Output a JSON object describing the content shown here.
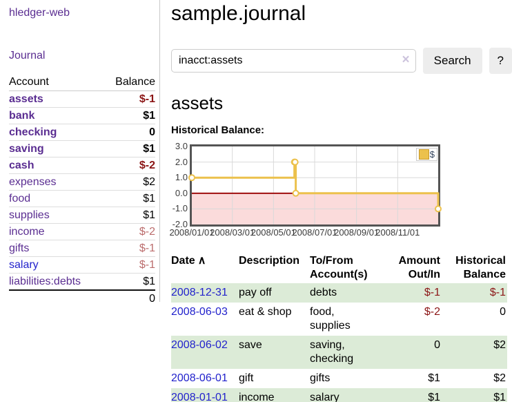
{
  "colors": {
    "link_purple": "#5a2d91",
    "link_blue": "#2222cc",
    "negative_strong": "#8b1515",
    "negative_soft": "#bb6c6c",
    "row_highlight_green": "#dcebd7",
    "button_gray": "#ededed",
    "chart_line_gold": "#ecc14c",
    "chart_negative_region": "#fbdbdb",
    "chart_zero_line": "#9a0000",
    "chart_border_gray": "#545454",
    "gridline_gray": "#d9d9d9"
  },
  "sidebar": {
    "brand": "hledger-web",
    "journal_link": "Journal",
    "table": {
      "account_header": "Account",
      "balance_header": "Balance"
    },
    "accounts": [
      {
        "name": "assets",
        "depth": 1,
        "bold": true,
        "balance": "$-1",
        "neg": "strong"
      },
      {
        "name": "bank",
        "depth": 2,
        "bold": true,
        "balance": "$1"
      },
      {
        "name": "checking",
        "depth": 3,
        "bold": true,
        "balance": "0"
      },
      {
        "name": "saving",
        "depth": 3,
        "bold": true,
        "balance": "$1"
      },
      {
        "name": "cash",
        "depth": 2,
        "bold": true,
        "balance": "$-2",
        "neg": "strong"
      },
      {
        "name": "expenses",
        "depth": 1,
        "bold": false,
        "balance": "$2"
      },
      {
        "name": "food",
        "depth": 2,
        "bold": false,
        "balance": "$1"
      },
      {
        "name": "supplies",
        "depth": 2,
        "bold": false,
        "balance": "$1"
      },
      {
        "name": "income",
        "depth": 1,
        "bold": false,
        "balance": "$-2",
        "neg": "soft"
      },
      {
        "name": "gifts",
        "depth": 2,
        "bold": false,
        "balance": "$-1",
        "neg": "soft"
      },
      {
        "name": "salary",
        "depth": 2,
        "bold": false,
        "balance": "$-1",
        "neg": "soft",
        "blue": true
      },
      {
        "name": "liabilities:debts",
        "depth": 1,
        "bold": false,
        "balance": "$1"
      }
    ],
    "total": "0"
  },
  "main": {
    "title": "sample.journal",
    "search": {
      "value": "inacct:assets",
      "clear_icon": "×",
      "button_label": "Search",
      "help_label": "?"
    },
    "account_heading": "assets",
    "chart_label": "Historical Balance:"
  },
  "chart_data": {
    "type": "line",
    "step": true,
    "legend_label": "$",
    "ylim": [
      -2,
      3
    ],
    "x_max_day": 365,
    "y_ticks": [
      {
        "value": 3,
        "label": "3.0"
      },
      {
        "value": 2,
        "label": "2.0"
      },
      {
        "value": 1,
        "label": "1.0"
      },
      {
        "value": 0,
        "label": "0.0"
      },
      {
        "value": -1,
        "label": "-1.0"
      },
      {
        "value": -2,
        "label": "-2.0"
      }
    ],
    "x_ticks": [
      {
        "day": 0,
        "label": "2008/01/01"
      },
      {
        "day": 60,
        "label": "2008/03/01"
      },
      {
        "day": 121,
        "label": "2008/05/01"
      },
      {
        "day": 182,
        "label": "2008/07/01"
      },
      {
        "day": 244,
        "label": "2008/09/01"
      },
      {
        "day": 305,
        "label": "2008/11/01"
      }
    ],
    "points": [
      {
        "date": "2008-01-01",
        "day": 0,
        "value": 1
      },
      {
        "date": "2008-06-01",
        "day": 152,
        "value": 2
      },
      {
        "date": "2008-06-02",
        "day": 153,
        "value": 2
      },
      {
        "date": "2008-06-03",
        "day": 154,
        "value": 0
      },
      {
        "date": "2008-12-31",
        "day": 365,
        "value": -1
      }
    ]
  },
  "register": {
    "headers": [
      {
        "label": "Date",
        "align": "left",
        "sort_indicator": "∧"
      },
      {
        "label": "Description",
        "align": "left"
      },
      {
        "label": "To/From Account(s)",
        "align": "left"
      },
      {
        "label": "Amount Out/In",
        "align": "right"
      },
      {
        "label": "Historical Balance",
        "align": "right"
      }
    ],
    "rows": [
      {
        "date": "2008-12-31",
        "description": "pay off",
        "accounts": "debts",
        "amount": "$-1",
        "amount_neg": true,
        "balance": "$-1",
        "balance_neg": true
      },
      {
        "date": "2008-06-03",
        "description": "eat & shop",
        "accounts": "food, supplies",
        "amount": "$-2",
        "amount_neg": true,
        "balance": "0",
        "balance_neg": false
      },
      {
        "date": "2008-06-02",
        "description": "save",
        "accounts": "saving, checking",
        "amount": "0",
        "amount_neg": false,
        "balance": "$2",
        "balance_neg": false
      },
      {
        "date": "2008-06-01",
        "description": "gift",
        "accounts": "gifts",
        "amount": "$1",
        "amount_neg": false,
        "balance": "$2",
        "balance_neg": false
      },
      {
        "date": "2008-01-01",
        "description": "income",
        "accounts": "salary",
        "amount": "$1",
        "amount_neg": false,
        "balance": "$1",
        "balance_neg": false
      }
    ]
  }
}
